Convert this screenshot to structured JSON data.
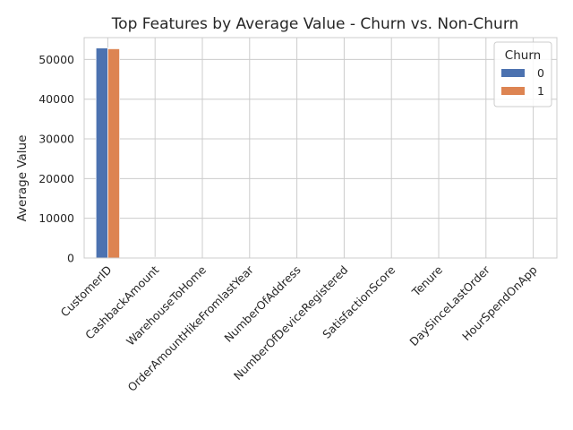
{
  "chart_data": {
    "type": "bar",
    "title": "Top Features by Average Value - Churn vs. Non-Churn",
    "xlabel": "",
    "ylabel": "Average Value",
    "categories": [
      "CustomerID",
      "CashbackAmount",
      "WarehouseToHome",
      "OrderAmountHikeFromlastYear",
      "NumberOfAddress",
      "NumberOfDeviceRegistered",
      "SatisfactionScore",
      "Tenure",
      "DaySinceLastOrder",
      "HourSpendOnApp"
    ],
    "series": [
      {
        "name": "0",
        "color": "#4c72b0",
        "values": [
          52900,
          180,
          15.4,
          15.7,
          4.1,
          3.6,
          3.0,
          11.5,
          4.8,
          2.9
        ]
      },
      {
        "name": "1",
        "color": "#dd8452",
        "values": [
          52700,
          160,
          17.0,
          15.6,
          4.5,
          3.9,
          3.4,
          3.4,
          3.2,
          2.9
        ]
      }
    ],
    "ylim": [
      0,
      55500
    ],
    "yticks": [
      0,
      10000,
      20000,
      30000,
      40000,
      50000
    ],
    "grid": true,
    "legend": {
      "title": "Churn",
      "placement": "top-right"
    }
  }
}
